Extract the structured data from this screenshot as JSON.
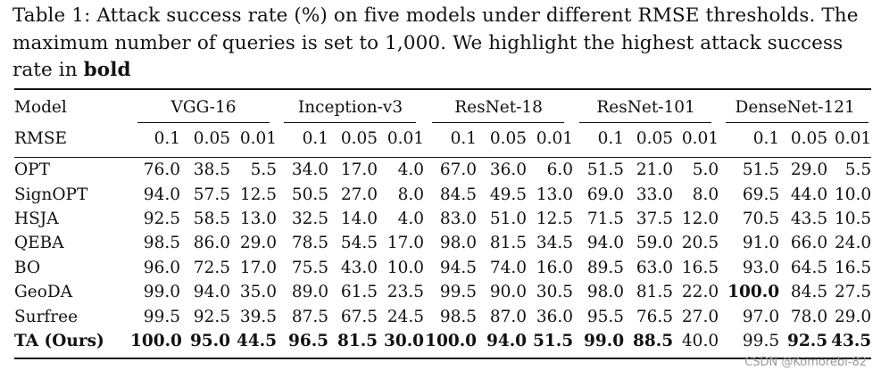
{
  "caption": {
    "prefix": "Table 1: Attack success rate (%) on five models under different RMSE thresholds. The maximum number of queries is set to 1,000. We highlight the highest attack success rate in ",
    "bold": "bold"
  },
  "table": {
    "model_header": "Model",
    "rmse_header": "RMSE",
    "groups": [
      "VGG-16",
      "Inception-v3",
      "ResNet-18",
      "ResNet-101",
      "DenseNet-121"
    ],
    "thresholds": [
      "0.1",
      "0.05",
      "0.01"
    ],
    "rows": [
      {
        "method": "OPT",
        "values": [
          "76.0",
          "38.5",
          "5.5",
          "34.0",
          "17.0",
          "4.0",
          "67.0",
          "36.0",
          "6.0",
          "51.5",
          "21.0",
          "5.0",
          "51.5",
          "29.0",
          "5.5"
        ],
        "bold": []
      },
      {
        "method": "SignOPT",
        "values": [
          "94.0",
          "57.5",
          "12.5",
          "50.5",
          "27.0",
          "8.0",
          "84.5",
          "49.5",
          "13.0",
          "69.0",
          "33.0",
          "8.0",
          "69.5",
          "44.0",
          "10.0"
        ],
        "bold": []
      },
      {
        "method": "HSJA",
        "values": [
          "92.5",
          "58.5",
          "13.0",
          "32.5",
          "14.0",
          "4.0",
          "83.0",
          "51.0",
          "12.5",
          "71.5",
          "37.5",
          "12.0",
          "70.5",
          "43.5",
          "10.5"
        ],
        "bold": []
      },
      {
        "method": "QEBA",
        "values": [
          "98.5",
          "86.0",
          "29.0",
          "78.5",
          "54.5",
          "17.0",
          "98.0",
          "81.5",
          "34.5",
          "94.0",
          "59.0",
          "20.5",
          "91.0",
          "66.0",
          "24.0"
        ],
        "bold": []
      },
      {
        "method": "BO",
        "values": [
          "96.0",
          "72.5",
          "17.0",
          "75.5",
          "43.0",
          "10.0",
          "94.5",
          "74.0",
          "16.0",
          "89.5",
          "63.0",
          "16.5",
          "93.0",
          "64.5",
          "16.5"
        ],
        "bold": []
      },
      {
        "method": "GeoDA",
        "values": [
          "99.0",
          "94.0",
          "35.0",
          "89.0",
          "61.5",
          "23.5",
          "99.5",
          "90.0",
          "30.5",
          "98.0",
          "81.5",
          "22.0",
          "100.0",
          "84.5",
          "27.5"
        ],
        "bold": [
          12
        ]
      },
      {
        "method": "Surfree",
        "values": [
          "99.5",
          "92.5",
          "39.5",
          "87.5",
          "67.5",
          "24.5",
          "98.5",
          "87.0",
          "36.0",
          "95.5",
          "76.5",
          "27.0",
          "97.0",
          "78.0",
          "29.0"
        ],
        "bold": []
      },
      {
        "method": "TA (Ours)",
        "values": [
          "100.0",
          "95.0",
          "44.5",
          "96.5",
          "81.5",
          "30.0",
          "100.0",
          "94.0",
          "51.5",
          "99.0",
          "88.5",
          "40.0",
          "99.5",
          "92.5",
          "43.5"
        ],
        "bold": [
          0,
          1,
          2,
          3,
          4,
          5,
          6,
          7,
          8,
          9,
          10,
          13,
          14
        ],
        "method_bold": true
      }
    ]
  },
  "watermark": "CSDN @Komorebi-82"
}
